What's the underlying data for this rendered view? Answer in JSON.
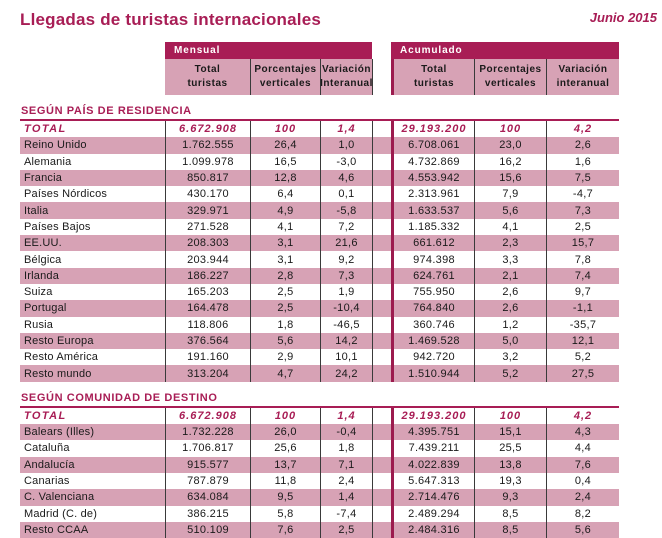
{
  "colors": {
    "accent": "#a81d55",
    "row_pink": "#d7a2b5"
  },
  "header": {
    "title": "Llegadas de turistas internacionales",
    "period": "Junio 2015"
  },
  "table_header": {
    "mensual_label": "Mensual",
    "acumulado_label": "Acumulado",
    "mensual_columns": [
      {
        "l1": "Total",
        "l2": "turistas"
      },
      {
        "l1": "Porcentajes",
        "l2": "verticales"
      },
      {
        "l1": "Variación",
        "l2": "Interanual"
      }
    ],
    "acumulado_columns": [
      {
        "l1": "Total",
        "l2": "turistas"
      },
      {
        "l1": "Porcentajes",
        "l2": "verticales"
      },
      {
        "l1": "Variación",
        "l2": "interanual"
      }
    ]
  },
  "sections": [
    {
      "title": "SEGÚN PAÍS DE RESIDENCIA",
      "total": {
        "label": "TOTAL",
        "m": [
          "6.672.908",
          "100",
          "1,4"
        ],
        "a": [
          "29.193.200",
          "100",
          "4,2"
        ]
      },
      "rows": [
        {
          "label": "Reino Unido",
          "m": [
            "1.762.555",
            "26,4",
            "1,0"
          ],
          "a": [
            "6.708.061",
            "23,0",
            "2,6"
          ]
        },
        {
          "label": "Alemania",
          "m": [
            "1.099.978",
            "16,5",
            "-3,0"
          ],
          "a": [
            "4.732.869",
            "16,2",
            "1,6"
          ]
        },
        {
          "label": "Francia",
          "m": [
            "850.817",
            "12,8",
            "4,6"
          ],
          "a": [
            "4.553.942",
            "15,6",
            "7,5"
          ]
        },
        {
          "label": "Países Nórdicos",
          "m": [
            "430.170",
            "6,4",
            "0,1"
          ],
          "a": [
            "2.313.961",
            "7,9",
            "-4,7"
          ]
        },
        {
          "label": "Italia",
          "m": [
            "329.971",
            "4,9",
            "-5,8"
          ],
          "a": [
            "1.633.537",
            "5,6",
            "7,3"
          ]
        },
        {
          "label": "Países Bajos",
          "m": [
            "271.528",
            "4,1",
            "7,2"
          ],
          "a": [
            "1.185.332",
            "4,1",
            "2,5"
          ]
        },
        {
          "label": "EE.UU.",
          "m": [
            "208.303",
            "3,1",
            "21,6"
          ],
          "a": [
            "661.612",
            "2,3",
            "15,7"
          ]
        },
        {
          "label": "Bélgica",
          "m": [
            "203.944",
            "3,1",
            "9,2"
          ],
          "a": [
            "974.398",
            "3,3",
            "7,8"
          ]
        },
        {
          "label": "Irlanda",
          "m": [
            "186.227",
            "2,8",
            "7,3"
          ],
          "a": [
            "624.761",
            "2,1",
            "7,4"
          ]
        },
        {
          "label": "Suiza",
          "m": [
            "165.203",
            "2,5",
            "1,9"
          ],
          "a": [
            "755.950",
            "2,6",
            "9,7"
          ]
        },
        {
          "label": "Portugal",
          "m": [
            "164.478",
            "2,5",
            "-10,4"
          ],
          "a": [
            "764.840",
            "2,6",
            "-1,1"
          ]
        },
        {
          "label": "Rusia",
          "m": [
            "118.806",
            "1,8",
            "-46,5"
          ],
          "a": [
            "360.746",
            "1,2",
            "-35,7"
          ]
        },
        {
          "label": "Resto Europa",
          "m": [
            "376.564",
            "5,6",
            "14,2"
          ],
          "a": [
            "1.469.528",
            "5,0",
            "12,1"
          ]
        },
        {
          "label": "Resto América",
          "m": [
            "191.160",
            "2,9",
            "10,1"
          ],
          "a": [
            "942.720",
            "3,2",
            "5,2"
          ]
        },
        {
          "label": "Resto mundo",
          "m": [
            "313.204",
            "4,7",
            "24,2"
          ],
          "a": [
            "1.510.944",
            "5,2",
            "27,5"
          ]
        }
      ]
    },
    {
      "title": "SEGÚN COMUNIDAD DE DESTINO",
      "total": {
        "label": "TOTAL",
        "m": [
          "6.672.908",
          "100",
          "1,4"
        ],
        "a": [
          "29.193.200",
          "100",
          "4,2"
        ]
      },
      "rows": [
        {
          "label": "Balears (Illes)",
          "m": [
            "1.732.228",
            "26,0",
            "-0,4"
          ],
          "a": [
            "4.395.751",
            "15,1",
            "4,3"
          ]
        },
        {
          "label": "Cataluña",
          "m": [
            "1.706.817",
            "25,6",
            "1,8"
          ],
          "a": [
            "7.439.211",
            "25,5",
            "4,4"
          ]
        },
        {
          "label": "Andalucía",
          "m": [
            "915.577",
            "13,7",
            "7,1"
          ],
          "a": [
            "4.022.839",
            "13,8",
            "7,6"
          ]
        },
        {
          "label": "Canarias",
          "m": [
            "787.879",
            "11,8",
            "2,4"
          ],
          "a": [
            "5.647.313",
            "19,3",
            "0,4"
          ]
        },
        {
          "label": "C. Valenciana",
          "m": [
            "634.084",
            "9,5",
            "1,4"
          ],
          "a": [
            "2.714.476",
            "9,3",
            "2,4"
          ]
        },
        {
          "label": "Madrid (C. de)",
          "m": [
            "386.215",
            "5,8",
            "-7,4"
          ],
          "a": [
            "2.489.294",
            "8,5",
            "8,2"
          ]
        },
        {
          "label": "Resto CCAA",
          "m": [
            "510.109",
            "7,6",
            "2,5"
          ],
          "a": [
            "2.484.316",
            "8,5",
            "5,6"
          ]
        }
      ]
    }
  ]
}
